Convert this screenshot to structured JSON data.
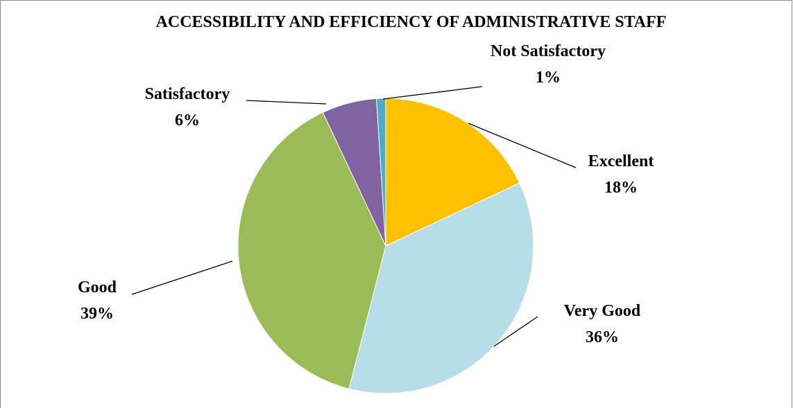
{
  "chart_data": {
    "type": "pie",
    "title": "ACCESSIBILITY AND EFFICIENCY OF ADMINISTRATIVE STAFF",
    "categories": [
      "Excellent",
      "Very Good",
      "Good",
      "Satisfactory",
      "Not Satisfactory"
    ],
    "values": [
      18,
      36,
      39,
      6,
      1
    ],
    "value_labels": [
      "18%",
      "36%",
      "39%",
      "6%",
      "1%"
    ],
    "colors": [
      "#ffc000",
      "#b7dde8",
      "#9bbb59",
      "#8064a2",
      "#4bacc6"
    ]
  }
}
